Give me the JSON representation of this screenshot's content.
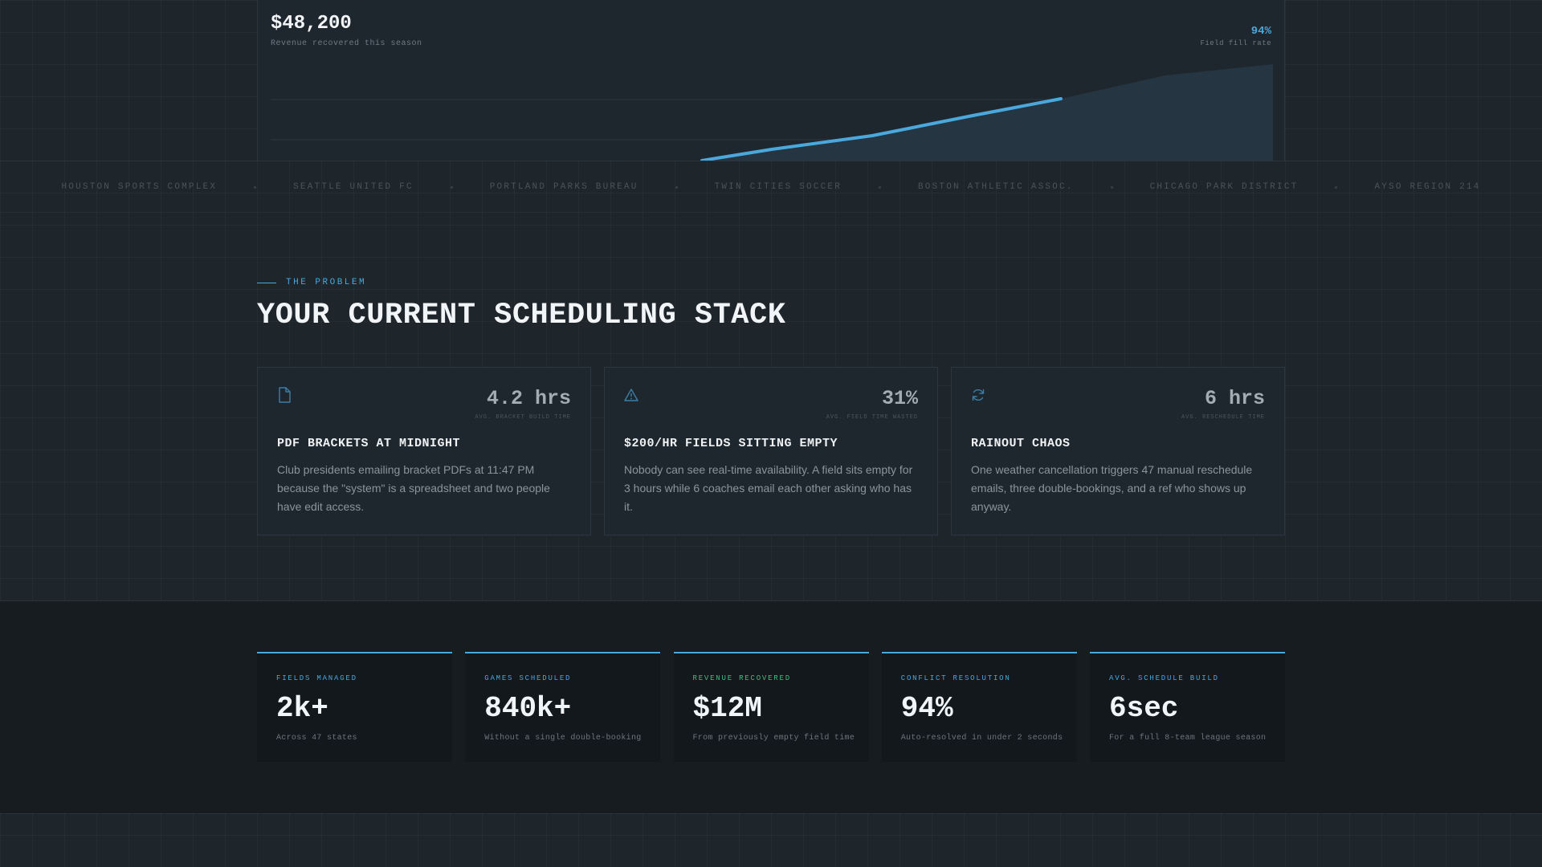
{
  "chart_panel": {
    "amount": "$48,200",
    "amount_label": "Revenue recovered this season",
    "rate": "94%",
    "rate_label": "Field fill rate",
    "colors": {
      "line": "#4aa8dc",
      "area": "#2a3f4f"
    }
  },
  "logos": [
    "HOUSTON SPORTS COMPLEX",
    "SEATTLE UNITED FC",
    "PORTLAND PARKS BUREAU",
    "TWIN CITIES SOCCER",
    "BOSTON ATHLETIC ASSOC.",
    "CHICAGO PARK DISTRICT",
    "AYSO REGION 214"
  ],
  "problem": {
    "eyebrow": "THE PROBLEM",
    "title": "YOUR CURRENT SCHEDULING STACK",
    "cards": [
      {
        "icon": "document-icon",
        "stat": "4.2 hrs",
        "stat_label": "AVG. BRACKET BUILD TIME",
        "title": "PDF BRACKETS AT MIDNIGHT",
        "body": "Club presidents emailing bracket PDFs at 11:47 PM because the \"system\" is a spreadsheet and two people have edit access."
      },
      {
        "icon": "warning-triangle-icon",
        "stat": "31%",
        "stat_label": "AVG. FIELD TIME WASTED",
        "title": "$200/HR FIELDS SITTING EMPTY",
        "body": "Nobody can see real-time availability. A field sits empty for 3 hours while 6 coaches email each other asking who has it."
      },
      {
        "icon": "refresh-icon",
        "stat": "6 hrs",
        "stat_label": "AVG. RESCHEDULE TIME",
        "title": "RAINOUT CHAOS",
        "body": "One weather cancellation triggers 47 manual reschedule emails, three double-bookings, and a ref who shows up anyway."
      }
    ]
  },
  "stats": [
    {
      "label": "FIELDS MANAGED",
      "value": "2k+",
      "desc": "Across 47 states",
      "color": "#4aa8dc"
    },
    {
      "label": "GAMES SCHEDULED",
      "value": "840k+",
      "desc": "Without a single double-booking",
      "color": "#4aa8dc"
    },
    {
      "label": "REVENUE RECOVERED",
      "value": "$12M",
      "desc": "From previously empty field time",
      "color": "#3fbf7f"
    },
    {
      "label": "CONFLICT RESOLUTION",
      "value": "94%",
      "desc": "Auto-resolved in under 2 seconds",
      "color": "#4aa8dc"
    },
    {
      "label": "AVG. SCHEDULE BUILD",
      "value": "6sec",
      "desc": "For a full 8-team league season",
      "color": "#4aa8dc"
    }
  ]
}
